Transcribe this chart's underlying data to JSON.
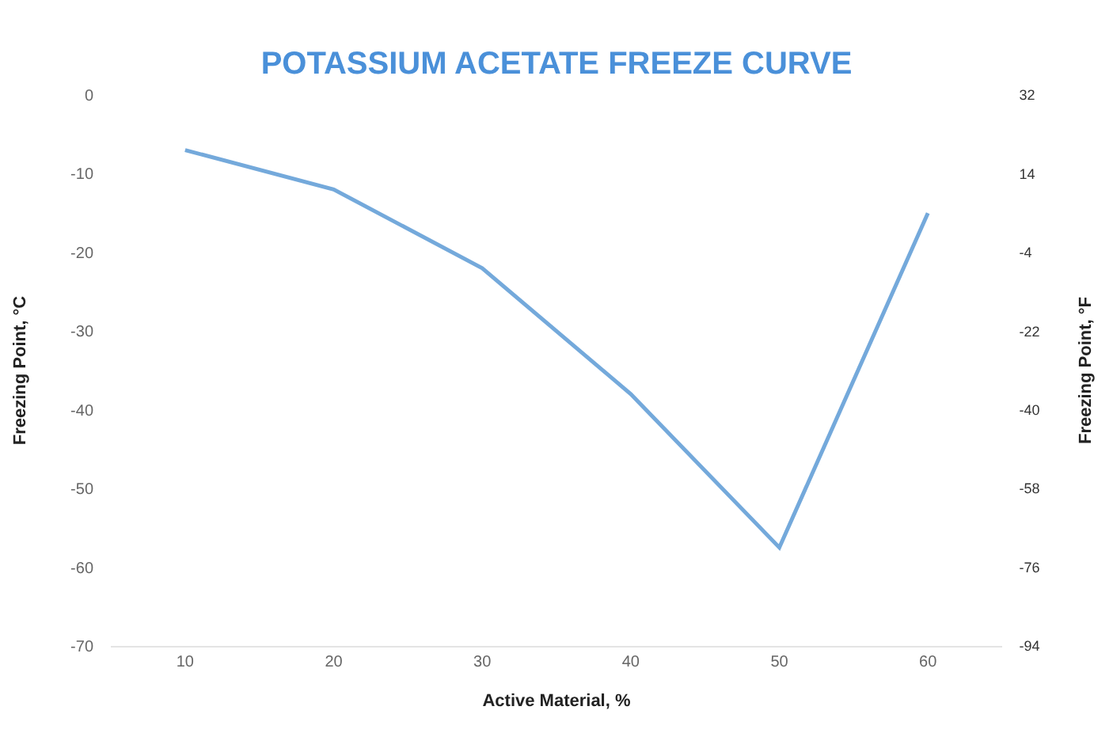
{
  "chart_data": {
    "type": "line",
    "title": "POTASSIUM ACETATE FREEZE CURVE",
    "xlabel": "Active Material, %",
    "ylabel": "Freezing Point, °C",
    "y2label": "Freezing Point, °F",
    "x": [
      10,
      20,
      30,
      40,
      50,
      60
    ],
    "series": [
      {
        "color": "#74a9db",
        "values": [
          -7,
          -12,
          -22,
          -38,
          -57.5,
          -15
        ]
      }
    ],
    "xlim": [
      5,
      65
    ],
    "xticks": [
      10,
      20,
      30,
      40,
      50,
      60
    ],
    "ylim": [
      -70,
      0
    ],
    "yticks": [
      0,
      -10,
      -20,
      -30,
      -40,
      -50,
      -60,
      -70
    ],
    "y2lim": [
      -94,
      32
    ],
    "y2ticks": [
      32,
      14,
      -4,
      -22,
      -40,
      -58,
      -76,
      -94
    ],
    "marker": "none",
    "line_style": "solid"
  }
}
